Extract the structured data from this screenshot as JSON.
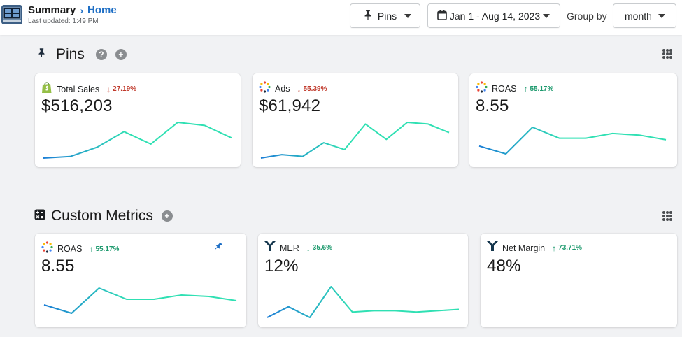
{
  "header": {
    "title": "Summary",
    "breadcrumb_home": "Home",
    "last_updated": "Last updated: 1:49 PM",
    "pins_label": "Pins",
    "date_range": "Jan 1 - Aug 14, 2023",
    "group_by_label": "Group by",
    "group_by_value": "month"
  },
  "pins_section": {
    "title": "Pins",
    "cards": [
      {
        "name": "Total Sales",
        "direction": "down",
        "change": "27.19%",
        "value": "$516,203",
        "icon": "shopify-bag-icon",
        "trend": [
          7,
          8,
          14,
          24,
          16,
          30,
          28,
          20
        ]
      },
      {
        "name": "Ads",
        "direction": "down",
        "change": "55.39%",
        "value": "$61,942",
        "icon": "dots-ring-icon",
        "trend": [
          6,
          8,
          7,
          15,
          11,
          26,
          17,
          27,
          26,
          21
        ]
      },
      {
        "name": "ROAS",
        "direction": "up",
        "change": "55.17%",
        "value": "8.55",
        "icon": "dots-ring-icon",
        "trend": [
          14,
          9,
          26,
          19,
          19,
          22,
          21,
          18
        ]
      }
    ]
  },
  "custom_section": {
    "title": "Custom Metrics",
    "cards": [
      {
        "name": "ROAS",
        "direction": "up",
        "change": "55.17%",
        "value": "8.55",
        "icon": "dots-ring-icon",
        "pinned": true,
        "trend": [
          16,
          10,
          28,
          20,
          20,
          23,
          22,
          19
        ]
      },
      {
        "name": "MER",
        "direction": "down",
        "change": "35.6%",
        "value": "12%",
        "icon": "funnel-y-icon",
        "trend": [
          6,
          14,
          6,
          29,
          10,
          11,
          11,
          10,
          11,
          12
        ]
      },
      {
        "name": "Net Margin",
        "direction": "up",
        "change": "73.71%",
        "value": "48%",
        "icon": "funnel-y-icon",
        "trend": []
      }
    ]
  },
  "colors": {
    "accent": "#1f6fc5",
    "line_start": "#1d7fd6",
    "line_end": "#2fe0b3",
    "down": "#c0392b",
    "up": "#1e9a6e"
  }
}
